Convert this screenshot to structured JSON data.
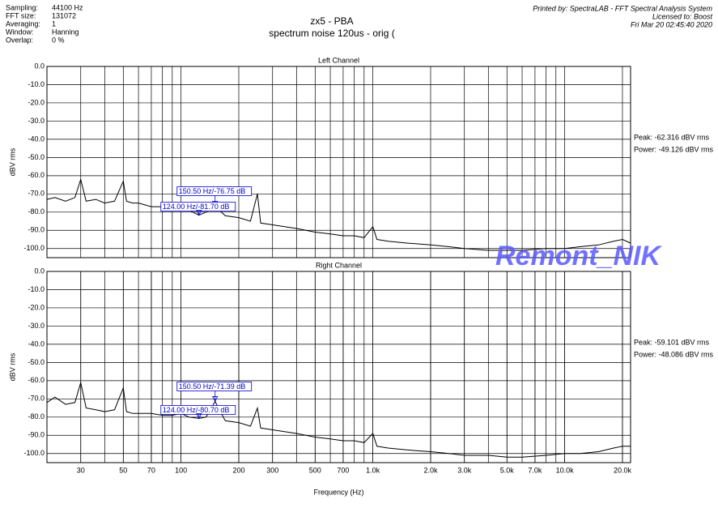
{
  "header": {
    "info": [
      [
        "Sampling:",
        "44100 Hz"
      ],
      [
        "FFT size:",
        "131072"
      ],
      [
        "Averaging:",
        "1"
      ],
      [
        "Window:",
        "Hanning"
      ],
      [
        "Overlap:",
        "0 %"
      ]
    ],
    "title": "zx5 - PBA",
    "subtitle": "spectrum noise 120us - orig (",
    "printed_by": [
      "Printed by: SpectraLAB - FFT Spectral Analysis System",
      "Licensed to: Boost",
      "Fri Mar 20 02:45:40 2020"
    ],
    "watermark": "Remont_NIK"
  },
  "chart_data": [
    {
      "type": "line",
      "title": "Left Channel",
      "y_label": "dBV rms",
      "log_x": true,
      "grid": true,
      "minor_grid": true,
      "color": "#000000",
      "xlim": [
        20,
        22050
      ],
      "ylim": [
        -105,
        0
      ],
      "yticks": [
        {
          "value": 0,
          "label": "0.0"
        },
        {
          "value": -10,
          "label": "-10.0"
        },
        {
          "value": -20,
          "label": "-20.0"
        },
        {
          "value": -30,
          "label": "-30.0"
        },
        {
          "value": -40,
          "label": "-40.0"
        },
        {
          "value": -50,
          "label": "-50.0"
        },
        {
          "value": -60,
          "label": "-60.0"
        },
        {
          "value": -70,
          "label": "-70.0"
        },
        {
          "value": -80,
          "label": "-80.0"
        },
        {
          "value": -90,
          "label": "-90.0"
        },
        {
          "value": -100,
          "label": "-100.0"
        }
      ],
      "x": [
        20,
        22,
        25,
        28,
        30,
        32,
        36,
        40,
        45,
        50,
        52,
        56,
        60,
        70,
        80,
        90,
        100,
        110,
        124,
        135,
        150.5,
        170,
        200,
        230,
        250,
        260,
        300,
        400,
        500,
        600,
        700,
        800,
        900,
        1000,
        1050,
        1200,
        1500,
        2000,
        2500,
        3000,
        4000,
        5000,
        6000,
        8000,
        10000,
        12000,
        15000,
        18000,
        20000,
        22000
      ],
      "values": [
        -73,
        -72,
        -74,
        -72,
        -62,
        -74,
        -73,
        -75,
        -74,
        -63,
        -74,
        -75,
        -75,
        -77,
        -77,
        -79,
        -78,
        -79,
        -81.7,
        -80,
        -76.75,
        -82,
        -83,
        -85,
        -70,
        -86,
        -87,
        -89,
        -91,
        -92,
        -93,
        -93,
        -94,
        -88,
        -95,
        -96,
        -97,
        -98,
        -99,
        -100,
        -101,
        -101,
        -101,
        -100,
        -100,
        -99,
        -98,
        -96,
        -95,
        -97
      ],
      "markers": [
        {
          "label": "150.50 Hz/-76.75 dB",
          "x": 150.5,
          "y": -76.75
        },
        {
          "label": "124.00 Hz/-81.70 dB",
          "x": 124,
          "y": -81.7
        }
      ],
      "stats": [
        "Peak: -62.316 dBV rms",
        "Power: -49.126 dBV rms"
      ]
    },
    {
      "type": "line",
      "title": "Right Channel",
      "y_label": "dBV rms",
      "x_label": "Frequency (Hz)",
      "log_x": true,
      "grid": true,
      "minor_grid": true,
      "color": "#000000",
      "xlim": [
        20,
        22050
      ],
      "ylim": [
        -105,
        0
      ],
      "yticks": [
        {
          "value": 0,
          "label": "0.0"
        },
        {
          "value": -10,
          "label": "-10.0"
        },
        {
          "value": -20,
          "label": "-20.0"
        },
        {
          "value": -30,
          "label": "-30.0"
        },
        {
          "value": -40,
          "label": "-40.0"
        },
        {
          "value": -50,
          "label": "-50.0"
        },
        {
          "value": -60,
          "label": "-60.0"
        },
        {
          "value": -70,
          "label": "-70.0"
        },
        {
          "value": -80,
          "label": "-80.0"
        },
        {
          "value": -90,
          "label": "-90.0"
        },
        {
          "value": -100,
          "label": "-100.0"
        }
      ],
      "xticks": [
        30,
        50,
        70,
        100,
        200,
        300,
        500,
        700,
        {
          "value": 1000,
          "label": "1.0k"
        },
        {
          "value": 2000,
          "label": "2.0k"
        },
        {
          "value": 3000,
          "label": "3.0k"
        },
        {
          "value": 5000,
          "label": "5.0k"
        },
        {
          "value": 7000,
          "label": "7.0k"
        },
        {
          "value": 10000,
          "label": "10.0k"
        },
        {
          "value": 20000,
          "label": "20.0k"
        }
      ],
      "x": [
        20,
        22,
        25,
        28,
        30,
        32,
        36,
        40,
        45,
        50,
        52,
        56,
        60,
        70,
        80,
        90,
        100,
        110,
        124,
        135,
        150.5,
        170,
        200,
        230,
        250,
        260,
        300,
        400,
        500,
        600,
        700,
        800,
        900,
        1000,
        1050,
        1200,
        1500,
        2000,
        2500,
        3000,
        4000,
        5000,
        6000,
        8000,
        10000,
        12000,
        15000,
        18000,
        20000,
        22000
      ],
      "values": [
        -72,
        -69,
        -73,
        -72,
        -61,
        -75,
        -76,
        -77,
        -76,
        -64,
        -77,
        -78,
        -78,
        -78,
        -79,
        -79,
        -78,
        -80,
        -80.7,
        -80,
        -71.39,
        -82,
        -83,
        -85,
        -75,
        -86,
        -87,
        -89,
        -91,
        -92,
        -93,
        -93,
        -94,
        -89,
        -96,
        -97,
        -98,
        -99,
        -100,
        -101,
        -101,
        -102,
        -102,
        -101,
        -100,
        -100,
        -99,
        -97,
        -96,
        -96
      ],
      "markers": [
        {
          "label": "150.50 Hz/-71.39 dB",
          "x": 150.5,
          "y": -71.39
        },
        {
          "label": "124.00 Hz/-80.70 dB",
          "x": 124,
          "y": -80.7
        }
      ],
      "stats": [
        "Peak: -59.101 dBV rms",
        "Power: -48.086 dBV rms"
      ]
    }
  ]
}
